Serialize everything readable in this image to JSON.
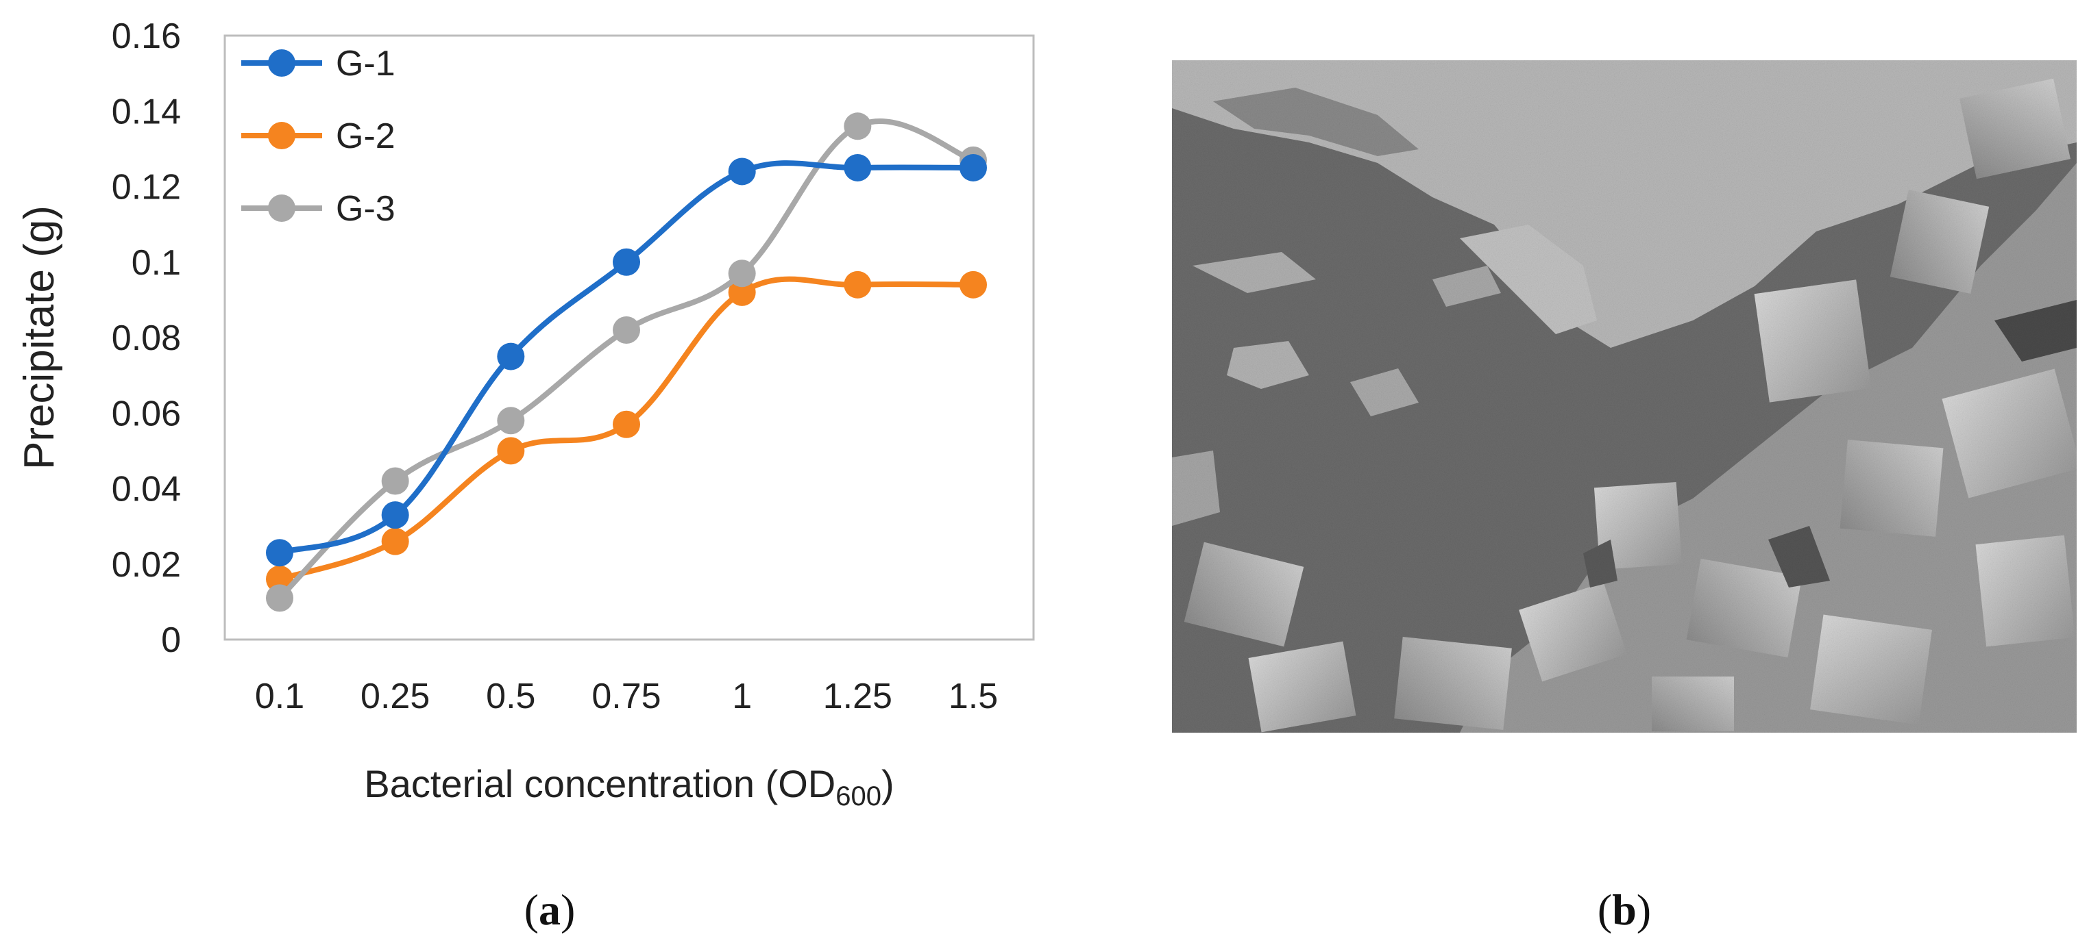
{
  "chart_data": {
    "type": "line",
    "categories": [
      "0.1",
      "0.25",
      "0.5",
      "0.75",
      "1",
      "1.25",
      "1.5"
    ],
    "series": [
      {
        "name": "G-1",
        "color": "#1f6ec8",
        "values": [
          0.023,
          0.033,
          0.075,
          0.1,
          0.124,
          0.125,
          0.125
        ]
      },
      {
        "name": "G-2",
        "color": "#f5841f",
        "values": [
          0.016,
          0.026,
          0.05,
          0.057,
          0.092,
          0.094,
          0.094
        ]
      },
      {
        "name": "G-3",
        "color": "#a8a8a8",
        "values": [
          0.011,
          0.042,
          0.058,
          0.082,
          0.097,
          0.136,
          0.127
        ]
      }
    ],
    "ylabel": "Precipitate (g)",
    "xlabel_main": "Bacterial concentration (OD",
    "xlabel_sub": "600",
    "xlabel_close": ")",
    "ylim": [
      0,
      0.16
    ],
    "yticks": [
      "0",
      "0.02",
      "0.04",
      "0.06",
      "0.08",
      "0.1",
      "0.12",
      "0.14",
      "0.16"
    ],
    "grid": false,
    "legend_position": "top-left"
  },
  "captions": {
    "a_open": "(",
    "a_letter": "a",
    "a_close": ")",
    "b_open": "(",
    "b_letter": "b",
    "b_close": ")"
  }
}
